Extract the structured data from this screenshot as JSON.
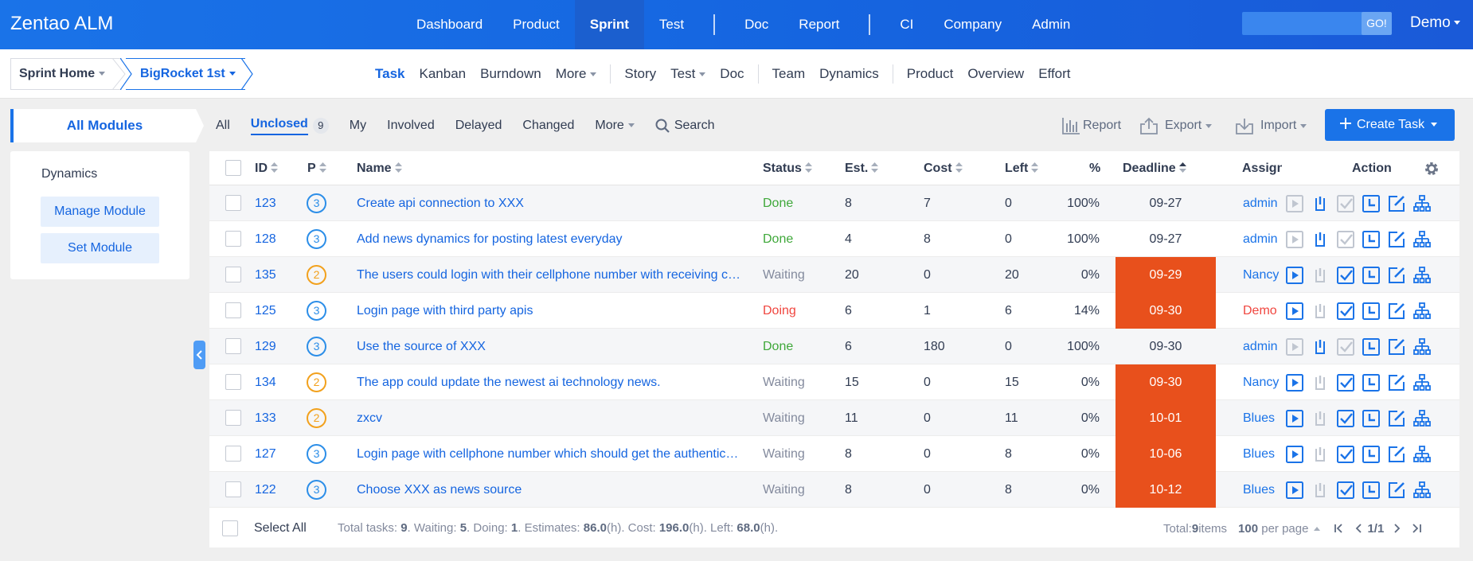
{
  "app": {
    "title": "Zentao ALM"
  },
  "topnav": [
    {
      "label": "Dashboard",
      "active": false
    },
    {
      "label": "Product",
      "active": false
    },
    {
      "label": "Sprint",
      "active": true
    },
    {
      "label": "Test",
      "active": false
    },
    {
      "sep": true
    },
    {
      "label": "Doc",
      "active": false
    },
    {
      "label": "Report",
      "active": false
    },
    {
      "sep": true
    },
    {
      "label": "CI",
      "active": false
    },
    {
      "label": "Company",
      "active": false
    },
    {
      "label": "Admin",
      "active": false
    }
  ],
  "search": {
    "value": "",
    "go_label": "GO!"
  },
  "user": {
    "name": "Demo"
  },
  "breadcrumb": {
    "home": "Sprint Home",
    "sprint": "BigRocket 1st"
  },
  "subnav": [
    {
      "label": "Task",
      "active": true,
      "caret": false
    },
    {
      "label": "Kanban",
      "caret": false
    },
    {
      "label": "Burndown",
      "caret": false
    },
    {
      "label": "More",
      "caret": true
    },
    {
      "sep": true
    },
    {
      "label": "Story",
      "caret": false
    },
    {
      "label": "Test",
      "caret": true
    },
    {
      "label": "Doc",
      "caret": false
    },
    {
      "sep": true
    },
    {
      "label": "Team",
      "caret": false
    },
    {
      "label": "Dynamics",
      "caret": false
    },
    {
      "sep": true
    },
    {
      "label": "Product",
      "caret": false
    },
    {
      "label": "Overview",
      "caret": false
    },
    {
      "label": "Effort",
      "caret": false
    }
  ],
  "sidebar": {
    "header": "All Modules",
    "dynamics": "Dynamics",
    "manage_module": "Manage Module",
    "set_module": "Set Module"
  },
  "filters": {
    "all": "All",
    "unclosed": "Unclosed",
    "unclosed_count": "9",
    "my": "My",
    "involved": "Involved",
    "delayed": "Delayed",
    "changed": "Changed",
    "more": "More",
    "search": "Search"
  },
  "toolbar": {
    "report": "Report",
    "export": "Export",
    "import": "Import",
    "create": "Create Task"
  },
  "table": {
    "headers": {
      "id": "ID",
      "p": "P",
      "name": "Name",
      "status": "Status",
      "est": "Est.",
      "cost": "Cost",
      "left": "Left",
      "pct": "%",
      "deadline": "Deadline",
      "assign": "Assign",
      "action": "Action"
    },
    "rows": [
      {
        "id": "123",
        "pri": "3",
        "name": "Create api connection to XXX",
        "status": "Done",
        "est": "8",
        "cost": "7",
        "left": "0",
        "pct": "100%",
        "deadline": "09-27",
        "overdue": false,
        "assign": "admin",
        "active": false
      },
      {
        "id": "128",
        "pri": "3",
        "name": "Add news dynamics for posting latest everyday",
        "status": "Done",
        "est": "4",
        "cost": "8",
        "left": "0",
        "pct": "100%",
        "deadline": "09-27",
        "overdue": false,
        "assign": "admin",
        "active": false
      },
      {
        "id": "135",
        "pri": "2",
        "name": "The users could login with their cellphone number with receiving c…",
        "status": "Waiting",
        "est": "20",
        "cost": "0",
        "left": "20",
        "pct": "0%",
        "deadline": "09-29",
        "overdue": true,
        "assign": "Nancy",
        "active": true
      },
      {
        "id": "125",
        "pri": "3",
        "name": "Login page with third party apis",
        "status": "Doing",
        "est": "6",
        "cost": "1",
        "left": "6",
        "pct": "14%",
        "deadline": "09-30",
        "overdue": true,
        "assign": "Demo",
        "active": true
      },
      {
        "id": "129",
        "pri": "3",
        "name": "Use the source of XXX",
        "status": "Done",
        "est": "6",
        "cost": "180",
        "left": "0",
        "pct": "100%",
        "deadline": "09-30",
        "overdue": false,
        "assign": "admin",
        "active": false
      },
      {
        "id": "134",
        "pri": "2",
        "name": "The app could update the newest ai technology news.",
        "status": "Waiting",
        "est": "15",
        "cost": "0",
        "left": "15",
        "pct": "0%",
        "deadline": "09-30",
        "overdue": true,
        "assign": "Nancy",
        "active": true
      },
      {
        "id": "133",
        "pri": "2",
        "name": "zxcv",
        "status": "Waiting",
        "est": "11",
        "cost": "0",
        "left": "11",
        "pct": "0%",
        "deadline": "10-01",
        "overdue": true,
        "assign": "Blues",
        "active": true
      },
      {
        "id": "127",
        "pri": "3",
        "name": "Login page with cellphone number which should get the authentic…",
        "status": "Waiting",
        "est": "8",
        "cost": "0",
        "left": "8",
        "pct": "0%",
        "deadline": "10-06",
        "overdue": true,
        "assign": "Blues",
        "active": true
      },
      {
        "id": "122",
        "pri": "3",
        "name": "Choose XXX as news source",
        "status": "Waiting",
        "est": "8",
        "cost": "0",
        "left": "8",
        "pct": "0%",
        "deadline": "10-12",
        "overdue": true,
        "assign": "Blues",
        "active": true
      }
    ]
  },
  "footer": {
    "select_all": "Select All",
    "summary": {
      "total_label": "Total tasks: ",
      "total": "9",
      "waiting_label": ". Waiting: ",
      "waiting": "5",
      "doing_label": ". Doing: ",
      "doing": "1",
      "est_label": ". Estimates: ",
      "est": "86.0",
      "cost_label": "(h). Cost: ",
      "cost": "196.0",
      "left_label": "(h). Left: ",
      "left": "68.0",
      "end": "(h)."
    },
    "pager": {
      "total_label": "Total: ",
      "total": "9",
      "items": " items",
      "per_page": "100",
      "per_page_label": " per page",
      "page": "1/1"
    }
  },
  "colors": {
    "primary": "#1a73e8",
    "done": "#3fa83a",
    "doing": "#f0463f",
    "waiting": "#838a9d",
    "overdue": "#e8501c",
    "pri2": "#f2a11d",
    "pri3": "#2c8ee8"
  }
}
